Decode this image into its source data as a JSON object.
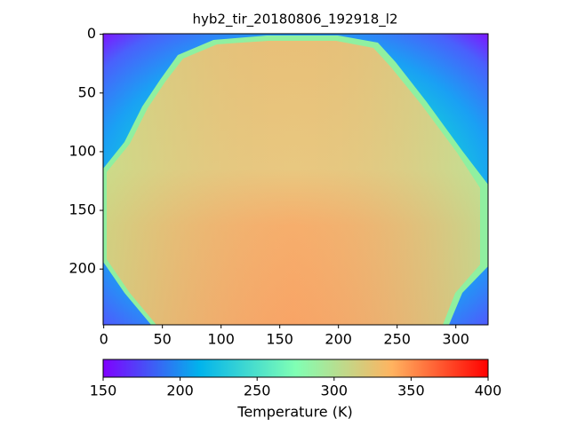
{
  "chart_data": {
    "type": "image",
    "title": "hyb2_tir_20180806_192918_l2",
    "xlim": [
      -0.5,
      327.5
    ],
    "ylim": [
      247.5,
      -0.5
    ],
    "xticks": [
      0,
      50,
      100,
      150,
      200,
      250,
      300
    ],
    "yticks": [
      0,
      50,
      100,
      150,
      200
    ],
    "colorbar": {
      "label": "Temperature (K)",
      "lim": [
        150,
        400
      ],
      "ticks": [
        150,
        200,
        250,
        300,
        350,
        400
      ],
      "colormap": "rainbow"
    }
  }
}
